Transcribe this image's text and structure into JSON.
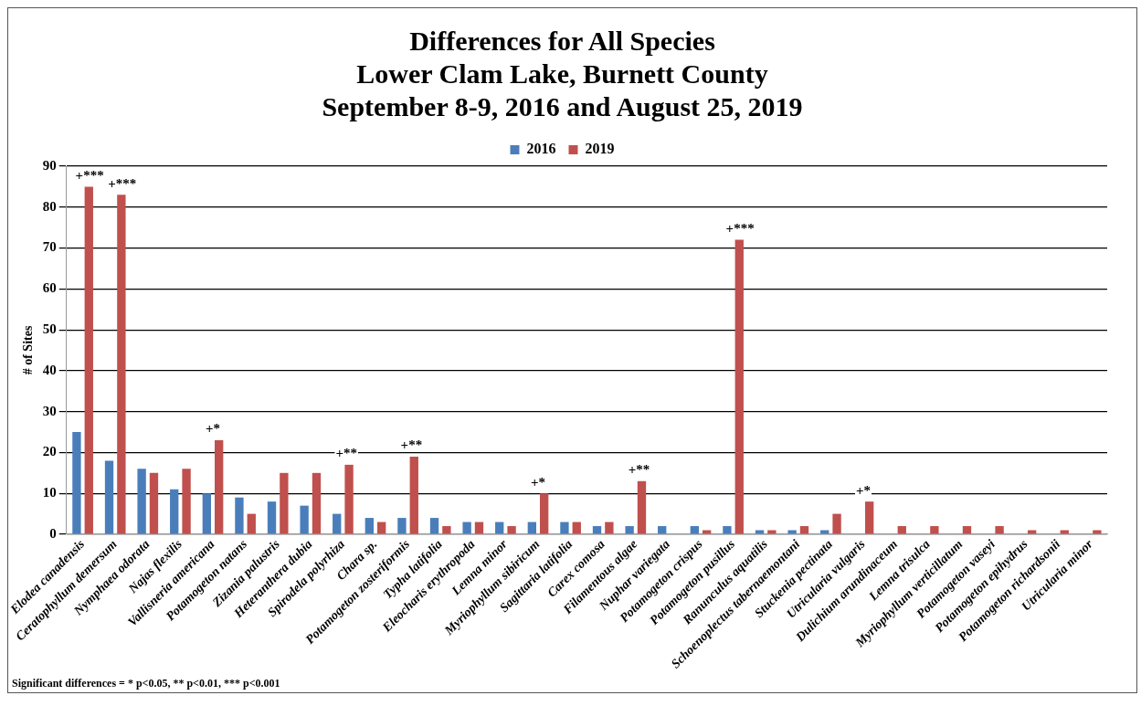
{
  "chart_data": {
    "type": "bar",
    "title": "Differences for All Species\nLower Clam Lake, Burnett County\nSeptember 8-9, 2016 and August 25, 2019",
    "ylabel": "# of Sites",
    "categories": [
      "Elodea canadensis",
      "Ceratophyllum demersum",
      "Nymphaea odorata",
      "Najas flexilis",
      "Vallisneria americana",
      "Potamogeton natans",
      "Zizania palustris",
      "Heteranthera dubia",
      "Spirodela polyrhiza",
      "Chara sp.",
      "Potamogeton zosteriformis",
      "Typha latifolia",
      "Eleocharis erythropoda",
      "Lemna minor",
      "Myriophyllum sibiricum",
      "Sagittaria latifolia",
      "Carex comosa",
      "Filamentous algae",
      "Nuphar variegata",
      "Potamogeton crispus",
      "Potamogeton pusillus",
      "Ranunculus aquatilis",
      "Schoenoplectus tabernaemontani",
      "Stuckenia pectinata",
      "Utricularia vulgaris",
      "Dulichium arundinaceum",
      "Lemna trisulca",
      "Myriophyllum verticillatum",
      "Potamogeton vaseyi",
      "Potamogeton epihydrus",
      "Potamogeton richardsonii",
      "Utricularia minor"
    ],
    "series": [
      {
        "name": "2016",
        "color": "#4a7ebb",
        "values": [
          25,
          18,
          16,
          11,
          10,
          9,
          8,
          7,
          5,
          4,
          4,
          4,
          3,
          3,
          3,
          3,
          2,
          2,
          2,
          2,
          2,
          1,
          1,
          1,
          0,
          0,
          0,
          0,
          0,
          0,
          0,
          0
        ]
      },
      {
        "name": "2019",
        "color": "#c0504d",
        "values": [
          85,
          83,
          15,
          16,
          23,
          5,
          15,
          15,
          17,
          3,
          19,
          2,
          3,
          2,
          10,
          3,
          3,
          13,
          0,
          1,
          72,
          1,
          2,
          5,
          8,
          2,
          2,
          2,
          2,
          1,
          1,
          1
        ]
      }
    ],
    "ylim": [
      0,
      90
    ],
    "yticks": [
      0,
      10,
      20,
      30,
      40,
      50,
      60,
      70,
      80,
      90
    ],
    "grid": "y",
    "legend": "top",
    "annotations": [
      {
        "text": "+***",
        "x": "Elodea canadensis",
        "y": 85
      },
      {
        "text": "+***",
        "x": "Ceratophyllum demersum",
        "y": 83
      },
      {
        "text": "+*",
        "x": "Vallisneria americana",
        "y": 23
      },
      {
        "text": "+**",
        "x": "Spirodela polyrhiza",
        "y": 17
      },
      {
        "text": "+**",
        "x": "Potamogeton zosteriformis",
        "y": 19
      },
      {
        "text": "+*",
        "x": "Myriophyllum sibiricum",
        "y": 10
      },
      {
        "text": "+**",
        "x": "Filamentous algae",
        "y": 13
      },
      {
        "text": "+***",
        "x": "Potamogeton pusillus",
        "y": 72
      },
      {
        "text": "+*",
        "x": "Utricularia vulgaris",
        "y": 8
      },
      "Significant differences = * p<0.05, ** p<0.01, *** p<0.001"
    ]
  }
}
